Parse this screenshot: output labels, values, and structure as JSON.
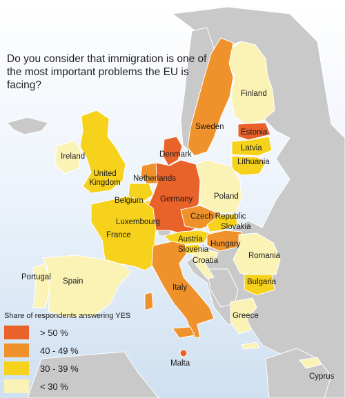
{
  "title": "Do you consider that immigration is one of the most important problems the EU is facing?",
  "legend": {
    "title": "Share of respondents answering YES",
    "items": [
      {
        "label": "> 50 %",
        "color": "#e8622a"
      },
      {
        "label": "40 - 49 %",
        "color": "#f0922b"
      },
      {
        "label": "30 - 39 %",
        "color": "#f7d21c"
      },
      {
        "label": "< 30 %",
        "color": "#faf3b5"
      }
    ]
  },
  "countries": [
    {
      "name": "Finland",
      "category": "< 30 %"
    },
    {
      "name": "Sweden",
      "category": "40 - 49 %"
    },
    {
      "name": "Estonia",
      "category": "> 50 %"
    },
    {
      "name": "Latvia",
      "category": "30 - 39 %"
    },
    {
      "name": "Lithuania",
      "category": "30 - 39 %"
    },
    {
      "name": "Denmark",
      "category": "> 50 %"
    },
    {
      "name": "Ireland",
      "category": "< 30 %"
    },
    {
      "name": "United Kingdom",
      "category": "30 - 39 %"
    },
    {
      "name": "Netherlands",
      "category": "40 - 49 %"
    },
    {
      "name": "Germany",
      "category": "> 50 %"
    },
    {
      "name": "Poland",
      "category": "< 30 %"
    },
    {
      "name": "Belgium",
      "category": "30 - 39 %"
    },
    {
      "name": "Czech Republic",
      "category": "40 - 49 %"
    },
    {
      "name": "Luxembourg",
      "category": "30 - 39 %"
    },
    {
      "name": "Slovakia",
      "category": "30 - 39 %"
    },
    {
      "name": "France",
      "category": "30 - 39 %"
    },
    {
      "name": "Austria",
      "category": "30 - 39 %"
    },
    {
      "name": "Hungary",
      "category": "40 - 49 %"
    },
    {
      "name": "Slovenia",
      "category": "30 - 39 %"
    },
    {
      "name": "Croatia",
      "category": "< 30 %"
    },
    {
      "name": "Romania",
      "category": "< 30 %"
    },
    {
      "name": "Portugal",
      "category": "< 30 %"
    },
    {
      "name": "Spain",
      "category": "< 30 %"
    },
    {
      "name": "Italy",
      "category": "40 - 49 %"
    },
    {
      "name": "Bulgaria",
      "category": "30 - 39 %"
    },
    {
      "name": "Greece",
      "category": "< 30 %"
    },
    {
      "name": "Malta",
      "category": "> 50 %"
    },
    {
      "name": "Cyprus",
      "category": "< 30 %"
    }
  ]
}
